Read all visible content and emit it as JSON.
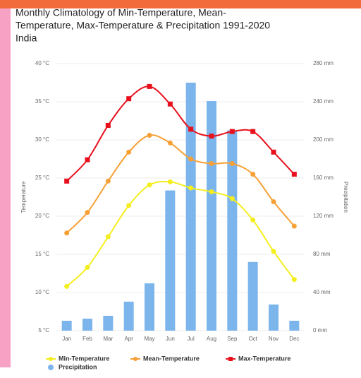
{
  "chart_data": {
    "type": "combo",
    "title": [
      "Monthly Climatology of Min-Temperature, Mean-",
      "Temperature, Max-Temperature & Precipitation 1991-2020"
    ],
    "subtitle": "India",
    "categories": [
      "Jan",
      "Feb",
      "Mar",
      "Apr",
      "May",
      "Jun",
      "Jul",
      "Aug",
      "Sep",
      "Oct",
      "Nov",
      "Dec"
    ],
    "ylabel": "Temperature",
    "y2label": "Precipitation",
    "ylim": [
      5,
      40
    ],
    "yticks": [
      {
        "value": 5,
        "label": "5 °C"
      },
      {
        "value": 10,
        "label": "10 °C"
      },
      {
        "value": 15,
        "label": "15 °C"
      },
      {
        "value": 20,
        "label": "20 °C"
      },
      {
        "value": 25,
        "label": "25 °C"
      },
      {
        "value": 30,
        "label": "30 °C"
      },
      {
        "value": 35,
        "label": "35 °C"
      },
      {
        "value": 40,
        "label": "40 °C"
      }
    ],
    "y2lim": [
      0,
      280
    ],
    "y2ticks": [
      {
        "value": 0,
        "label": "0 mm"
      },
      {
        "value": 40,
        "label": "40 mm"
      },
      {
        "value": 80,
        "label": "80 mm"
      },
      {
        "value": 120,
        "label": "120 mm"
      },
      {
        "value": 160,
        "label": "160 mm"
      },
      {
        "value": 200,
        "label": "200 mm"
      },
      {
        "value": 240,
        "label": "240 mm"
      },
      {
        "value": 280,
        "label": "280 mm"
      }
    ],
    "grid": true,
    "series": [
      {
        "name": "Min-Temperature",
        "type": "line",
        "marker": "circle",
        "color": "#f4ee1e",
        "values": [
          10.8,
          13.3,
          17.3,
          21.4,
          24.1,
          24.5,
          23.7,
          23.2,
          22.3,
          19.5,
          15.4,
          11.7
        ]
      },
      {
        "name": "Mean-Temperature",
        "type": "line",
        "marker": "circle",
        "color": "#f7a035",
        "values": [
          17.8,
          20.5,
          24.6,
          28.4,
          30.6,
          29.6,
          27.5,
          26.9,
          26.9,
          25.5,
          21.9,
          18.7
        ]
      },
      {
        "name": "Max-Temperature",
        "type": "line",
        "marker": "square",
        "color": "#e8101c",
        "values": [
          24.6,
          27.4,
          31.9,
          35.4,
          37.0,
          34.7,
          31.4,
          30.5,
          31.1,
          31.1,
          28.4,
          25.5
        ]
      },
      {
        "name": "Precipitation",
        "type": "bar",
        "axis": "y2",
        "color": "#7cb5ec",
        "values": [
          10.4,
          12.6,
          15.6,
          30.4,
          49.6,
          147,
          260,
          240.7,
          210,
          72,
          27.4,
          10.4
        ]
      }
    ]
  }
}
